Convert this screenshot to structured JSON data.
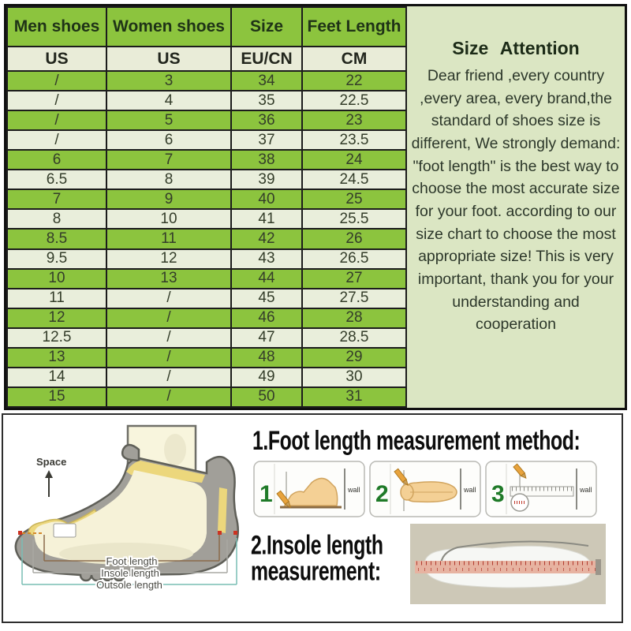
{
  "size_table": {
    "headers": [
      "Men shoes",
      "Women shoes",
      "Size",
      "Feet Length"
    ],
    "units": [
      "US",
      "US",
      "EU/CN",
      "CM"
    ],
    "rows": [
      [
        "/",
        "3",
        "34",
        "22"
      ],
      [
        "/",
        "4",
        "35",
        "22.5"
      ],
      [
        "/",
        "5",
        "36",
        "23"
      ],
      [
        "/",
        "6",
        "37",
        "23.5"
      ],
      [
        "6",
        "7",
        "38",
        "24"
      ],
      [
        "6.5",
        "8",
        "39",
        "24.5"
      ],
      [
        "7",
        "9",
        "40",
        "25"
      ],
      [
        "8",
        "10",
        "41",
        "25.5"
      ],
      [
        "8.5",
        "11",
        "42",
        "26"
      ],
      [
        "9.5",
        "12",
        "43",
        "26.5"
      ],
      [
        "10",
        "13",
        "44",
        "27"
      ],
      [
        "11",
        "/",
        "45",
        "27.5"
      ],
      [
        "12",
        "/",
        "46",
        "28"
      ],
      [
        "12.5",
        "/",
        "47",
        "28.5"
      ],
      [
        "13",
        "/",
        "48",
        "29"
      ],
      [
        "14",
        "/",
        "49",
        "30"
      ],
      [
        "15",
        "/",
        "50",
        "31"
      ]
    ]
  },
  "attention": {
    "title": "Size Attention",
    "body": "Dear friend ,every country ,every area, every brand,the standard of shoes size is different, We strongly demand: \"foot length\" is the best way to choose the most accurate size for your foot. according to our size chart to choose the most appropriate size! This is very important, thank you for your understanding and cooperation"
  },
  "measurement": {
    "heading1": "1.Foot length measurement method:",
    "heading2_line1": "2.Insole length",
    "heading2_line2": "measurement:",
    "space_label": "Space",
    "foot_length_label": "Foot length",
    "insole_length_label": "Insole length",
    "outsole_length_label": "Outsole length",
    "wall_label": "wall",
    "steps": [
      "1",
      "2",
      "3"
    ]
  },
  "colors": {
    "row_green": "#8cc43e",
    "row_light": "#e9eedb",
    "panel_green": "#dbe6c3",
    "border_dark": "#1c1c1c",
    "step_green": "#1f7a28"
  }
}
